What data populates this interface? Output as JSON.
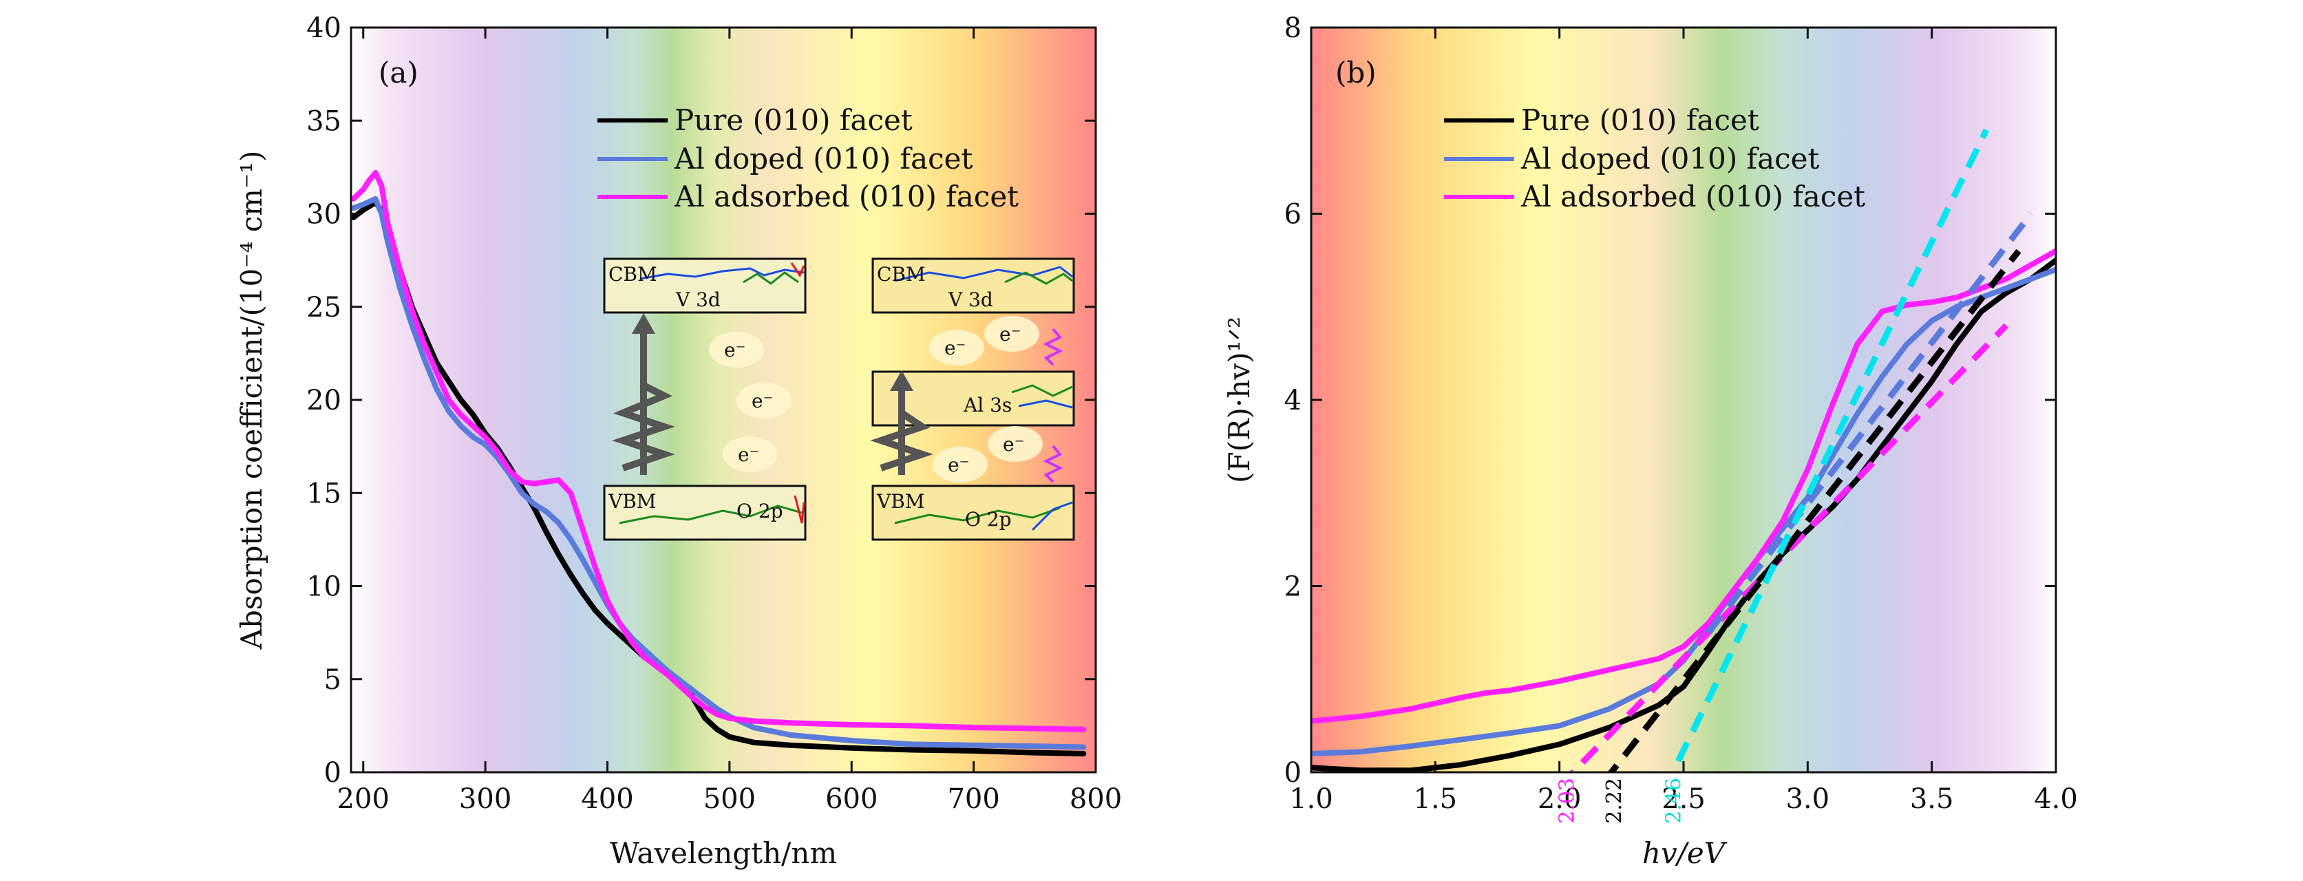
{
  "chart_data": [
    {
      "panel": "(a)",
      "type": "line",
      "xlabel": "Wavelength/nm",
      "ylabel": "Absorption coefficient/(10⁻⁴ cm⁻¹)",
      "xlim": [
        190,
        800
      ],
      "ylim": [
        0,
        40
      ],
      "xticks": [
        200,
        300,
        400,
        500,
        600,
        700,
        800
      ],
      "yticks": [
        0,
        5,
        10,
        15,
        20,
        25,
        30,
        35,
        40
      ],
      "background": "visible spectrum gradient (violet to red along wavelength)",
      "legend_position": "top-center",
      "series": [
        {
          "name": "Pure (010) facet",
          "color": "#000000",
          "x": [
            192,
            200,
            210,
            215,
            220,
            230,
            240,
            250,
            260,
            270,
            280,
            290,
            300,
            310,
            320,
            330,
            340,
            350,
            360,
            370,
            380,
            390,
            400,
            410,
            420,
            430,
            440,
            450,
            460,
            470,
            480,
            490,
            500,
            520,
            550,
            600,
            650,
            700,
            750,
            790
          ],
          "y": [
            29.8,
            30.2,
            30.6,
            30.2,
            29.0,
            27.0,
            25.0,
            23.5,
            22.0,
            21.0,
            20.0,
            19.2,
            18.2,
            17.4,
            16.4,
            15.3,
            14.2,
            12.9,
            11.7,
            10.6,
            9.6,
            8.7,
            8.0,
            7.4,
            6.8,
            6.2,
            5.8,
            5.4,
            4.9,
            4.0,
            2.9,
            2.3,
            1.9,
            1.6,
            1.45,
            1.3,
            1.2,
            1.15,
            1.05,
            1.0
          ]
        },
        {
          "name": "Al doped (010) facet",
          "color": "#5b7bdc",
          "x": [
            192,
            200,
            210,
            215,
            220,
            230,
            240,
            250,
            260,
            270,
            280,
            290,
            300,
            310,
            320,
            330,
            340,
            350,
            360,
            370,
            380,
            390,
            400,
            410,
            420,
            430,
            440,
            450,
            460,
            470,
            480,
            490,
            500,
            520,
            550,
            600,
            650,
            700,
            750,
            790
          ],
          "y": [
            30.3,
            30.5,
            30.8,
            30.0,
            28.5,
            26.0,
            24.0,
            22.2,
            20.6,
            19.4,
            18.6,
            18.0,
            17.6,
            16.9,
            16.0,
            15.0,
            14.4,
            14.0,
            13.4,
            12.5,
            11.4,
            10.2,
            9.0,
            8.0,
            7.2,
            6.6,
            6.0,
            5.4,
            4.9,
            4.4,
            3.9,
            3.4,
            3.0,
            2.4,
            2.0,
            1.7,
            1.5,
            1.45,
            1.4,
            1.35
          ]
        },
        {
          "name": "Al adsorbed (010) facet",
          "color": "#ff20ff",
          "x": [
            192,
            200,
            205,
            210,
            215,
            220,
            230,
            240,
            250,
            260,
            270,
            280,
            290,
            300,
            310,
            320,
            330,
            340,
            350,
            360,
            370,
            380,
            390,
            400,
            410,
            420,
            430,
            440,
            450,
            460,
            470,
            480,
            490,
            500,
            520,
            550,
            600,
            650,
            700,
            750,
            790
          ],
          "y": [
            30.8,
            31.3,
            31.8,
            32.2,
            31.5,
            29.5,
            27.0,
            24.8,
            23.0,
            21.5,
            20.0,
            19.2,
            18.6,
            18.0,
            17.2,
            16.2,
            15.6,
            15.5,
            15.6,
            15.7,
            15.0,
            13.0,
            11.0,
            9.2,
            8.0,
            7.0,
            6.2,
            5.7,
            5.2,
            4.6,
            4.0,
            3.5,
            3.1,
            2.9,
            2.75,
            2.65,
            2.55,
            2.5,
            2.4,
            2.35,
            2.3
          ]
        }
      ],
      "annotations": [
        "(a)",
        "CBM",
        "V 3d",
        "VBM",
        "O 2p",
        "e⁻",
        "Al 3s"
      ]
    },
    {
      "panel": "(b)",
      "type": "line",
      "xlabel": "hv/eV",
      "ylabel": "(F(R)·hv)¹ᐟ²",
      "xlim": [
        1.0,
        4.0
      ],
      "ylim": [
        0,
        8
      ],
      "xticks": [
        1.0,
        1.5,
        2.0,
        2.5,
        3.0,
        3.5,
        4.0
      ],
      "yticks": [
        0,
        2,
        4,
        6,
        8
      ],
      "background": "visible spectrum gradient (red to violet along photon energy)",
      "legend_position": "top-center",
      "series": [
        {
          "name": "Pure (010) facet",
          "color": "#000000",
          "x": [
            1.0,
            1.2,
            1.4,
            1.6,
            1.8,
            2.0,
            2.2,
            2.4,
            2.5,
            2.6,
            2.7,
            2.8,
            2.9,
            3.0,
            3.1,
            3.2,
            3.3,
            3.4,
            3.5,
            3.6,
            3.7,
            3.8,
            3.9,
            4.0
          ],
          "y": [
            0.05,
            0.02,
            0.02,
            0.08,
            0.18,
            0.3,
            0.48,
            0.72,
            0.92,
            1.3,
            1.7,
            2.05,
            2.35,
            2.6,
            2.85,
            3.15,
            3.5,
            3.85,
            4.2,
            4.6,
            4.95,
            5.15,
            5.3,
            5.5
          ]
        },
        {
          "name": "Al doped (010) facet",
          "color": "#5b7bdc",
          "x": [
            1.0,
            1.2,
            1.4,
            1.6,
            1.8,
            2.0,
            2.2,
            2.4,
            2.5,
            2.6,
            2.7,
            2.8,
            2.9,
            3.0,
            3.1,
            3.2,
            3.3,
            3.4,
            3.5,
            3.6,
            3.7,
            3.8,
            3.9,
            4.0
          ],
          "y": [
            0.2,
            0.22,
            0.28,
            0.35,
            0.42,
            0.5,
            0.68,
            0.95,
            1.2,
            1.55,
            1.95,
            2.3,
            2.62,
            2.95,
            3.4,
            3.85,
            4.25,
            4.6,
            4.85,
            5.0,
            5.1,
            5.2,
            5.3,
            5.4
          ]
        },
        {
          "name": "Al adsorbed (010) facet",
          "color": "#ff20ff",
          "x": [
            1.0,
            1.2,
            1.4,
            1.6,
            1.7,
            1.8,
            2.0,
            2.2,
            2.4,
            2.5,
            2.6,
            2.7,
            2.8,
            2.9,
            3.0,
            3.1,
            3.2,
            3.3,
            3.4,
            3.5,
            3.6,
            3.7,
            3.8,
            3.9,
            4.0
          ],
          "y": [
            0.55,
            0.6,
            0.68,
            0.8,
            0.85,
            0.88,
            0.98,
            1.1,
            1.22,
            1.35,
            1.6,
            1.95,
            2.3,
            2.7,
            3.25,
            3.95,
            4.6,
            4.95,
            5.02,
            5.05,
            5.1,
            5.2,
            5.3,
            5.45,
            5.6
          ]
        }
      ],
      "tangent_lines": [
        {
          "color": "#ff20ff",
          "x": [
            2.0,
            3.8
          ],
          "y": [
            -0.15,
            4.8
          ]
        },
        {
          "color": "#000000",
          "x": [
            2.18,
            3.85
          ],
          "y": [
            -0.1,
            5.6
          ]
        },
        {
          "color": "#5b7bdc",
          "x": [
            2.6,
            3.9
          ],
          "y": [
            1.5,
            6.0
          ]
        },
        {
          "color": "#00e5ee",
          "x": [
            2.42,
            3.72
          ],
          "y": [
            -0.2,
            6.9
          ]
        }
      ],
      "bandgap_labels": [
        {
          "value": "2.03",
          "color": "#ff20ff"
        },
        {
          "value": "2.22",
          "color": "#000000"
        },
        {
          "value": "2.46",
          "color": "#00dddd"
        }
      ],
      "annotations": [
        "(b)"
      ]
    }
  ]
}
